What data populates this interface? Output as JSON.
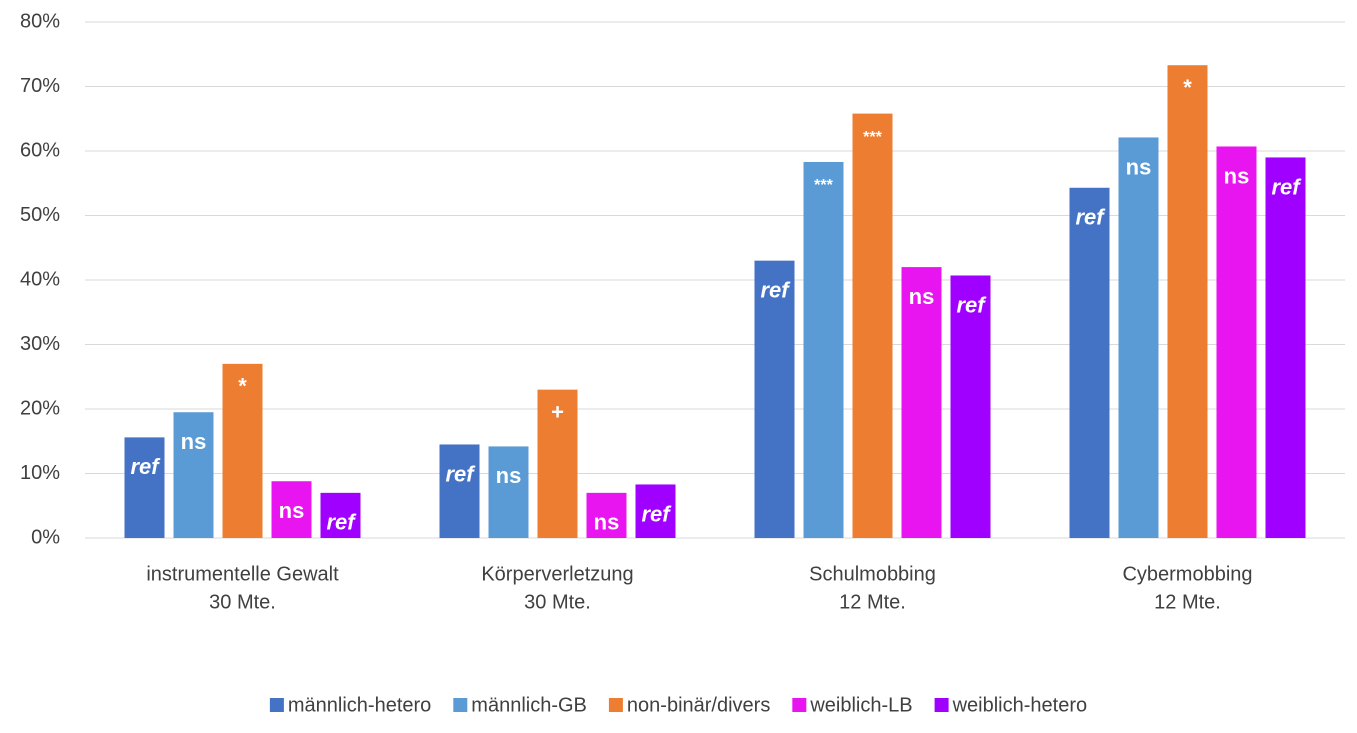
{
  "chart_data": {
    "type": "bar",
    "categories": [
      [
        "instrumentelle Gewalt",
        "30 Mte."
      ],
      [
        "Körperverletzung",
        "30 Mte."
      ],
      [
        "Schulmobbing",
        "12 Mte."
      ],
      [
        "Cybermobbing",
        "12 Mte."
      ]
    ],
    "series": [
      {
        "name": "männlich-hetero",
        "color": "#4472c4",
        "values": [
          15.6,
          14.5,
          43,
          54.3
        ],
        "labels": [
          "ref",
          "ref",
          "ref",
          "ref"
        ]
      },
      {
        "name": "männlich-GB",
        "color": "#5b9bd5",
        "values": [
          19.5,
          14.2,
          58.3,
          62.1
        ],
        "labels": [
          "ns",
          "ns",
          "***",
          "ns"
        ]
      },
      {
        "name": "non-binär/divers",
        "color": "#ed7d31",
        "values": [
          27,
          23,
          65.8,
          73.3
        ],
        "labels": [
          "*",
          "+",
          "***",
          "*"
        ]
      },
      {
        "name": "weiblich-LB",
        "color": "#e815f0",
        "values": [
          8.8,
          7,
          42,
          60.7
        ],
        "labels": [
          "ns",
          "ns",
          "ns",
          "ns"
        ]
      },
      {
        "name": "weiblich-hetero",
        "color": "#9f00ff",
        "values": [
          7,
          8.3,
          40.7,
          59
        ],
        "labels": [
          "ref",
          "ref",
          "ref",
          "ref"
        ]
      }
    ],
    "ylim": [
      0,
      80
    ],
    "yticks": [
      {
        "value": 0,
        "label": "0%"
      },
      {
        "value": 10,
        "label": "10%"
      },
      {
        "value": 20,
        "label": "20%"
      },
      {
        "value": 30,
        "label": "30%"
      },
      {
        "value": 40,
        "label": "40%"
      },
      {
        "value": 50,
        "label": "50%"
      },
      {
        "value": 60,
        "label": "60%"
      },
      {
        "value": 70,
        "label": "70%"
      },
      {
        "value": 80,
        "label": "80%"
      }
    ],
    "grid": true,
    "legend": "bottom"
  }
}
